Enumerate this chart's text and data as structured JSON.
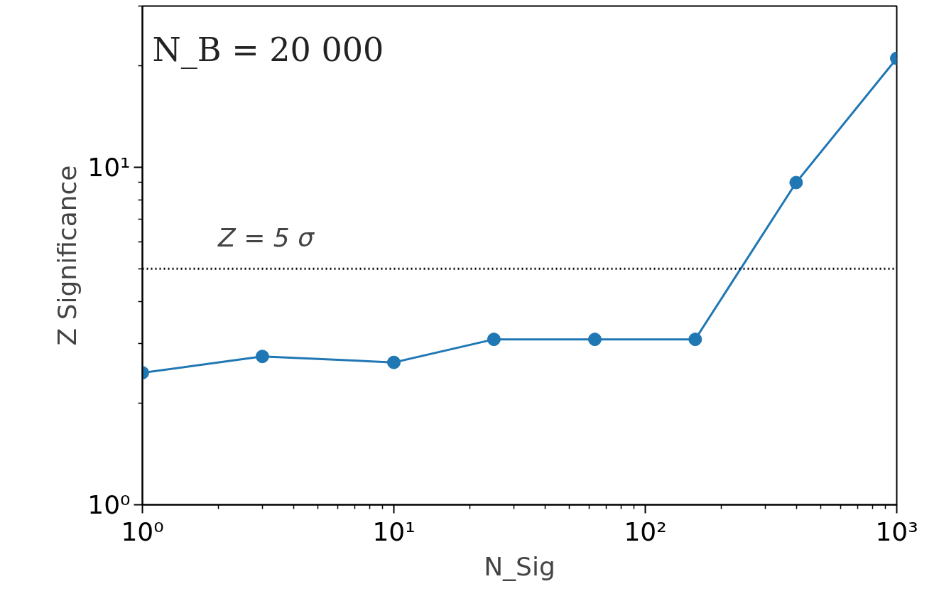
{
  "chart_data": {
    "type": "line",
    "xlabel": "N_Sig",
    "ylabel": "Z Significance",
    "x": [
      1,
      3,
      10,
      25,
      63,
      158,
      398,
      1000
    ],
    "series": [
      {
        "color": "#1f77b4",
        "values": [
          2.46,
          2.75,
          2.64,
          3.09,
          3.09,
          3.09,
          9.0,
          21.0
        ]
      }
    ],
    "log": "xy",
    "xlim": [
      1,
      1000
    ],
    "ylim": [
      1,
      30
    ],
    "xticks": [
      {
        "value": 1,
        "label": "10⁰"
      },
      {
        "value": 10,
        "label": "10¹"
      },
      {
        "value": 100,
        "label": "10²"
      },
      {
        "value": 1000,
        "label": "10³"
      }
    ],
    "yticks": [
      {
        "value": 1,
        "label": "10⁰"
      },
      {
        "value": 10,
        "label": "10¹"
      }
    ],
    "ref_lines": [
      {
        "axis": "y",
        "value": 5,
        "label": "Z = 5 σ",
        "color": "#000000",
        "line_style": "dotted"
      }
    ],
    "annotations": [
      "N_B = 20 000"
    ],
    "marker": "circle",
    "line_style": "solid",
    "grid": false
  }
}
